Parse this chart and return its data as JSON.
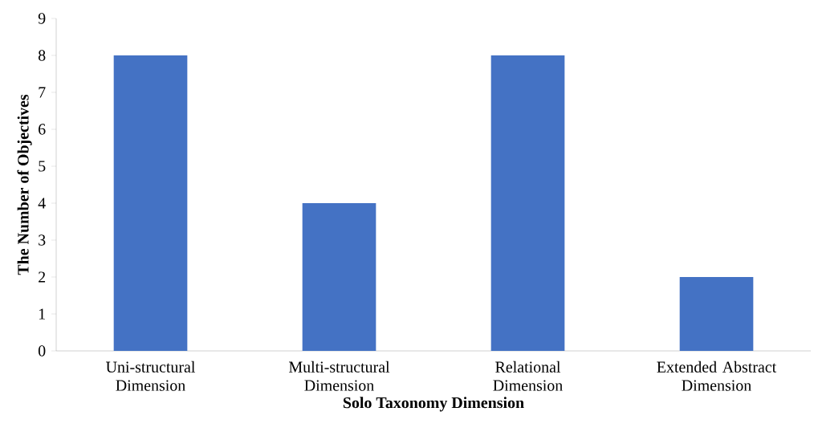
{
  "chart_data": {
    "type": "bar",
    "xlabel": "Solo Taxonomy Dimension",
    "ylabel": "The Number of Objectives",
    "categories": [
      "Uni-structural Dimension",
      "Multi-structural Dimension",
      "Relational Dimension",
      "Extended Abstract Dimension"
    ],
    "values": [
      8,
      4,
      8,
      2
    ],
    "color": "#4472c4",
    "ylim": [
      0,
      9
    ],
    "yticks": [
      0,
      1,
      2,
      3,
      4,
      5,
      6,
      7,
      8,
      9
    ],
    "grid": false
  }
}
